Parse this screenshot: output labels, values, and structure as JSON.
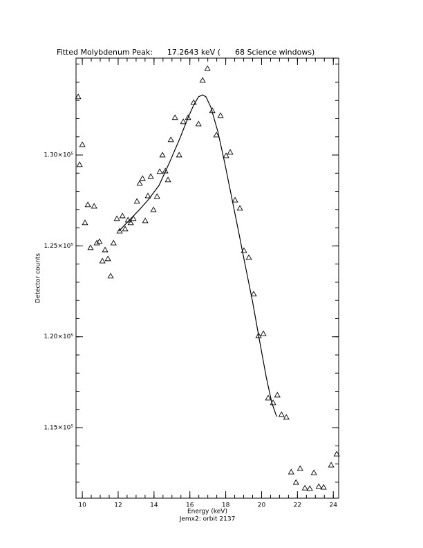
{
  "chart_data": {
    "type": "scatter",
    "title": "Fitted Molybdenum Peak:      17.2643 keV (      68 Science windows)",
    "xlabel": "Energy (keV)",
    "ylabel": "Detector counts",
    "subtitle": "Jemx2: orbit 2137",
    "xlim": [
      9.65,
      24.3
    ],
    "ylim": [
      111120,
      135330
    ],
    "xticks": [
      10,
      12,
      14,
      16,
      18,
      20,
      22,
      24
    ],
    "yticks": [
      {
        "value": 115000,
        "label": "1.15×10⁵"
      },
      {
        "value": 120000,
        "label": "1.20×10⁵"
      },
      {
        "value": 125000,
        "label": "1.25×10⁵"
      },
      {
        "value": 130000,
        "label": "1.30×10⁵"
      }
    ],
    "minor_ticks": {
      "x": 4,
      "y": 5
    },
    "series": [
      {
        "mode": "markers",
        "marker": "triangle",
        "color": "#000000",
        "x": [
          9.77,
          9.85,
          10.0,
          10.15,
          10.31,
          10.46,
          10.66,
          10.81,
          10.96,
          11.12,
          11.27,
          11.43,
          11.58,
          11.74,
          11.93,
          12.08,
          12.24,
          12.39,
          12.55,
          12.7,
          12.85,
          13.05,
          13.2,
          13.36,
          13.51,
          13.66,
          13.82,
          13.97,
          14.17,
          14.32,
          14.47,
          14.63,
          14.78,
          14.94,
          15.17,
          15.4,
          15.63,
          15.9,
          16.21,
          16.48,
          16.71,
          16.98,
          17.25,
          17.48,
          17.71,
          18.02,
          18.25,
          18.52,
          18.79,
          19.02,
          19.29,
          19.56,
          19.83,
          20.1,
          20.37,
          20.64,
          20.88,
          21.11,
          21.38,
          21.65,
          21.92,
          22.15,
          22.42,
          22.69,
          22.92,
          23.19,
          23.46,
          23.88,
          24.19
        ],
        "values": [
          133200,
          129470,
          130570,
          126270,
          127260,
          124900,
          127180,
          125160,
          125240,
          124170,
          124780,
          124290,
          123340,
          125160,
          126500,
          125810,
          126650,
          125930,
          126420,
          126270,
          126500,
          127450,
          128440,
          128710,
          126380,
          127750,
          128820,
          126990,
          127720,
          129090,
          130000,
          129120,
          128630,
          130840,
          132060,
          130000,
          131830,
          132060,
          132890,
          131710,
          134110,
          134760,
          132440,
          131100,
          132170,
          129960,
          130150,
          127520,
          127070,
          124740,
          124360,
          122350,
          120060,
          120170,
          116630,
          116370,
          116790,
          115720,
          115570,
          112560,
          111990,
          112750,
          111680,
          111650,
          112520,
          111760,
          111720,
          112940,
          113550
        ]
      },
      {
        "mode": "lines",
        "color": "#000000",
        "x": [
          12.04,
          12.55,
          13.12,
          13.7,
          14.28,
          14.86,
          15.44,
          15.9,
          16.21,
          16.48,
          16.71,
          16.9,
          17.17,
          17.56,
          17.94,
          18.33,
          18.72,
          19.1,
          19.49,
          19.87,
          20.26,
          20.57,
          20.84
        ],
        "values": [
          125810,
          126340,
          126920,
          127560,
          128330,
          129580,
          130910,
          132060,
          132740,
          133200,
          133310,
          133200,
          132630,
          131290,
          129580,
          127680,
          125770,
          123870,
          121970,
          119870,
          117780,
          116370,
          115610
        ]
      }
    ]
  }
}
